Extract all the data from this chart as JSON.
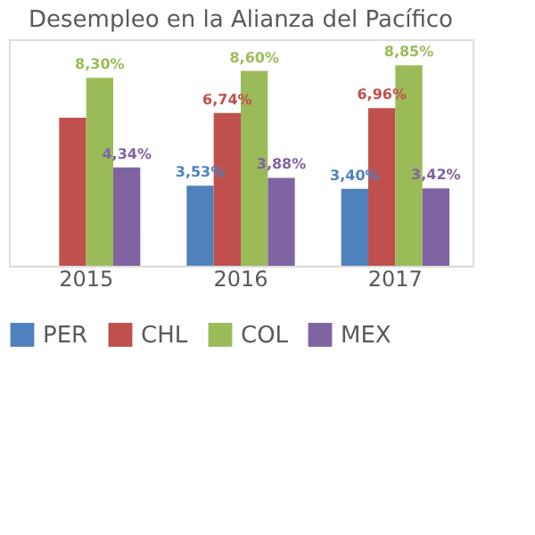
{
  "chart_data": {
    "type": "bar",
    "title": "Desempleo en la Alianza del Pacífico",
    "categories": [
      "2015",
      "2016",
      "2017"
    ],
    "series": [
      {
        "name": "PER",
        "color": "#4f81bd",
        "values": [
          null,
          3.53,
          3.4
        ],
        "value_labels": [
          null,
          "3,53%",
          "3,40%"
        ]
      },
      {
        "name": "CHL",
        "color": "#c0504d",
        "values": [
          6.54,
          6.74,
          6.96
        ],
        "value_labels": [
          null,
          "6,74%",
          "6,96%"
        ]
      },
      {
        "name": "COL",
        "color": "#9bbb59",
        "values": [
          8.3,
          8.6,
          8.85
        ],
        "value_labels": [
          "8,30%",
          "8,60%",
          "8,85%"
        ]
      },
      {
        "name": "MEX",
        "color": "#8064a2",
        "values": [
          4.34,
          3.88,
          3.42
        ],
        "value_labels": [
          "4,34%",
          "3,88%",
          "3,42%"
        ]
      }
    ],
    "ylim": [
      0,
      10
    ],
    "tick_labels": "x",
    "legend": "bottom"
  }
}
